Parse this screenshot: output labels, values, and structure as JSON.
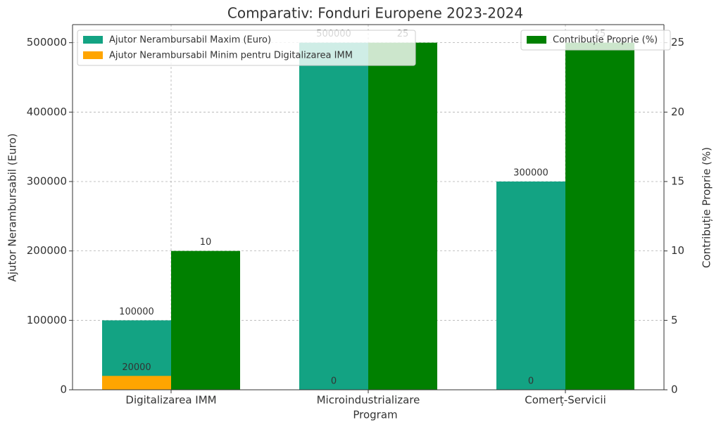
{
  "chart_data": {
    "type": "bar",
    "title": "Comparativ: Fonduri Europene 2023-2024",
    "x_label": "Program",
    "y_label": "Ajutor Nerambursabil (Euro)",
    "y2_label": "Contribuție Proprie (%)",
    "categories": [
      "Digitalizarea IMM",
      "Microindustrializare",
      "Comerț-Servicii"
    ],
    "series": [
      {
        "name": "Ajutor Nerambursabil Maxim (Euro)",
        "color": "#13a383",
        "values": [
          100000,
          500000,
          300000
        ]
      },
      {
        "name": "Ajutor Nerambursabil Minim pentru Digitalizarea IMM",
        "color": "#ffa500",
        "values": [
          20000,
          0,
          0
        ]
      },
      {
        "name": "Contribuție Proprie (%)",
        "color": "#008000",
        "values": [
          10,
          25,
          25
        ],
        "axis": "y2"
      }
    ],
    "ylim": [
      0,
      526000
    ],
    "yticks": [
      0,
      100000,
      200000,
      300000,
      400000,
      500000
    ],
    "y2lim": [
      0,
      26.3
    ],
    "y2ticks": [
      0,
      5,
      10,
      15,
      20,
      25
    ],
    "grid": true
  }
}
